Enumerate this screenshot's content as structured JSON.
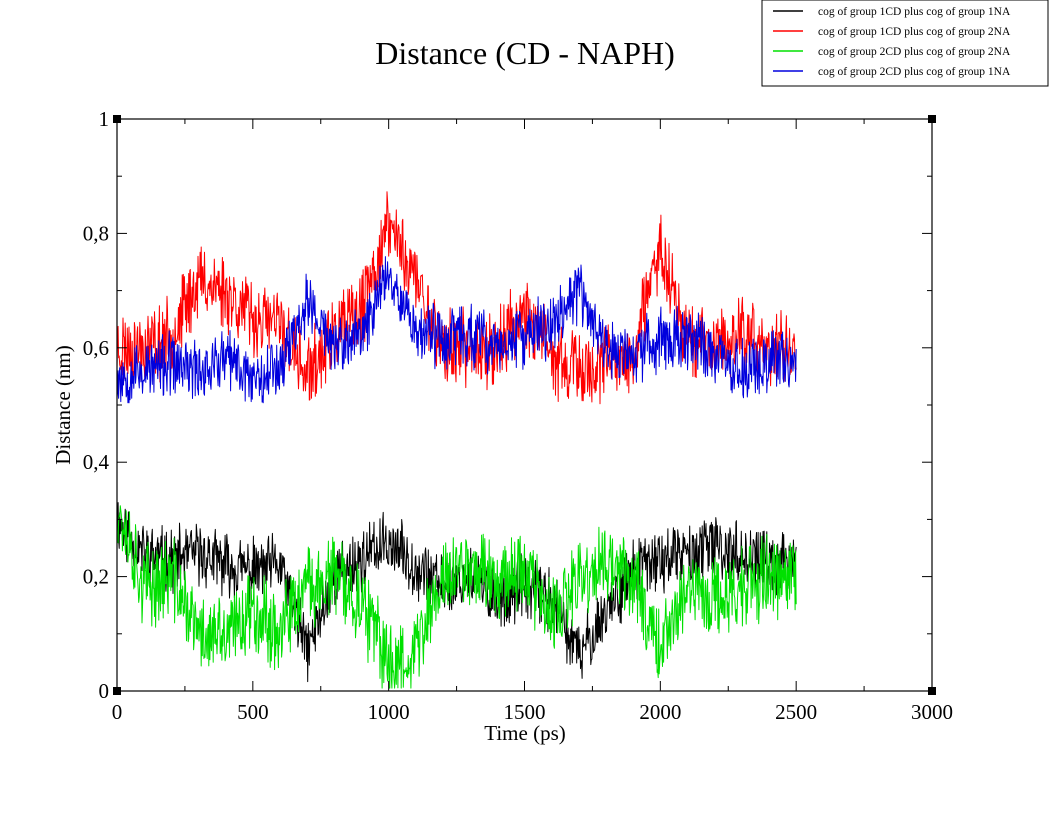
{
  "window": {
    "title": "Distance (CD - NAPH)"
  },
  "chart_data": {
    "type": "line",
    "title": "Distance (CD - NAPH)",
    "xlabel": "Time (ps)",
    "ylabel": "Distance (nm)",
    "xlim": [
      0,
      3000
    ],
    "ylim": [
      0,
      1
    ],
    "x_ticks": [
      0,
      500,
      1000,
      1500,
      2000,
      2500,
      3000
    ],
    "y_ticks": [
      0,
      0.2,
      0.4,
      0.6,
      0.8,
      1
    ],
    "x_tick_labels": [
      "0",
      "500",
      "1000",
      "1500",
      "2000",
      "2500",
      "3000"
    ],
    "y_tick_labels": [
      "0",
      "0,2",
      "0,4",
      "0,6",
      "0,8",
      "1"
    ],
    "grid": false,
    "legend_position": "top-right",
    "series": [
      {
        "name": "cog of group 1CD plus cog of group 1NA",
        "color": "#000000",
        "x": [
          0,
          100,
          200,
          300,
          400,
          500,
          600,
          700,
          800,
          900,
          1000,
          1100,
          1200,
          1300,
          1400,
          1500,
          1600,
          1700,
          1800,
          1900,
          2000,
          2100,
          2200,
          2300,
          2400,
          2500
        ],
        "values": [
          0.3,
          0.24,
          0.23,
          0.24,
          0.22,
          0.21,
          0.22,
          0.07,
          0.2,
          0.23,
          0.26,
          0.22,
          0.18,
          0.2,
          0.16,
          0.18,
          0.16,
          0.06,
          0.14,
          0.21,
          0.23,
          0.24,
          0.25,
          0.24,
          0.22,
          0.23
        ]
      },
      {
        "name": "cog of group 1CD plus cog of group 2NA",
        "color": "#ff0000",
        "x": [
          0,
          100,
          200,
          300,
          400,
          500,
          600,
          700,
          800,
          900,
          1000,
          1100,
          1200,
          1300,
          1400,
          1500,
          1600,
          1700,
          1800,
          1900,
          2000,
          2100,
          2200,
          2300,
          2400,
          2500
        ],
        "values": [
          0.6,
          0.6,
          0.62,
          0.72,
          0.7,
          0.65,
          0.64,
          0.55,
          0.62,
          0.66,
          0.82,
          0.72,
          0.6,
          0.6,
          0.6,
          0.67,
          0.58,
          0.56,
          0.57,
          0.58,
          0.78,
          0.62,
          0.6,
          0.63,
          0.6,
          0.59
        ]
      },
      {
        "name": "cog of group 2CD plus cog of group 2NA",
        "color": "#00e000",
        "x": [
          0,
          100,
          200,
          300,
          400,
          500,
          600,
          700,
          800,
          900,
          1000,
          1100,
          1200,
          1300,
          1400,
          1500,
          1600,
          1700,
          1800,
          1900,
          2000,
          2100,
          2200,
          2300,
          2400,
          2500
        ],
        "values": [
          0.33,
          0.18,
          0.2,
          0.1,
          0.09,
          0.15,
          0.1,
          0.18,
          0.2,
          0.15,
          0.05,
          0.07,
          0.2,
          0.22,
          0.2,
          0.22,
          0.12,
          0.19,
          0.22,
          0.2,
          0.08,
          0.18,
          0.16,
          0.18,
          0.2,
          0.2
        ]
      },
      {
        "name": "cog of group 2CD plus cog of group 1NA",
        "color": "#0000dd",
        "x": [
          0,
          100,
          200,
          300,
          400,
          500,
          600,
          700,
          800,
          900,
          1000,
          1100,
          1200,
          1300,
          1400,
          1500,
          1600,
          1700,
          1800,
          1900,
          2000,
          2100,
          2200,
          2300,
          2400,
          2500
        ],
        "values": [
          0.55,
          0.56,
          0.57,
          0.56,
          0.58,
          0.55,
          0.57,
          0.68,
          0.6,
          0.62,
          0.74,
          0.63,
          0.62,
          0.62,
          0.6,
          0.62,
          0.64,
          0.7,
          0.6,
          0.58,
          0.62,
          0.62,
          0.59,
          0.56,
          0.58,
          0.58
        ]
      }
    ]
  }
}
